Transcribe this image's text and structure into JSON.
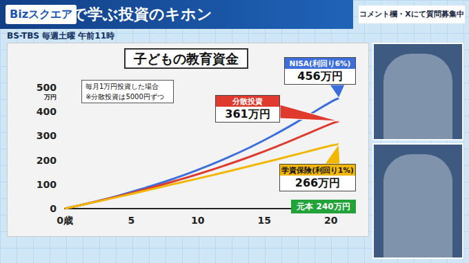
{
  "header": {
    "logo": "Bizスクエア",
    "title": "で学ぶ投資のキホン",
    "schedule": "BS-TBS 毎週土曜 午前11時",
    "notice": "コメント欄・Xにて質問募集中"
  },
  "chart_data": {
    "type": "line",
    "title": "子どもの教育資金",
    "note": [
      "毎月1万円投資した場合",
      "※分散投資は5000円ずつ"
    ],
    "principal": "元本 240万円",
    "x": [
      0,
      2,
      4,
      6,
      8,
      10,
      12,
      14,
      16,
      18,
      20,
      20.6
    ],
    "xlim": [
      0,
      21
    ],
    "xticks": [
      {
        "value": 0,
        "label": "0歳"
      },
      5,
      10,
      15,
      20
    ],
    "ylabel": "万円",
    "ylim": [
      0,
      500
    ],
    "yticks": [
      0,
      100,
      200,
      300,
      400,
      500
    ],
    "grid": false,
    "series": [
      {
        "name": "NISA(利回り6%)",
        "color": "#3d6fdc",
        "values": [
          0,
          25,
          53,
          85,
          120,
          160,
          205,
          255,
          312,
          375,
          440,
          456
        ],
        "value_labels": [
          null,
          null,
          null,
          null,
          null,
          null,
          null,
          null,
          null,
          null,
          null,
          "456万円"
        ]
      },
      {
        "name": "分散投資",
        "color": "#e03a2f",
        "values": [
          0,
          24.5,
          50.5,
          79,
          109.5,
          142,
          177.5,
          216,
          258,
          303.5,
          350,
          361
        ],
        "value_labels": [
          null,
          null,
          null,
          null,
          null,
          null,
          null,
          null,
          null,
          null,
          null,
          "361万円"
        ]
      },
      {
        "name": "学資保険(利回り1%)",
        "color": "#f2b705",
        "values": [
          0,
          24,
          48,
          73,
          99,
          124,
          150,
          177,
          204,
          232,
          260,
          266
        ],
        "value_labels": [
          null,
          null,
          null,
          null,
          null,
          null,
          null,
          null,
          null,
          null,
          null,
          "266万円"
        ]
      }
    ]
  }
}
